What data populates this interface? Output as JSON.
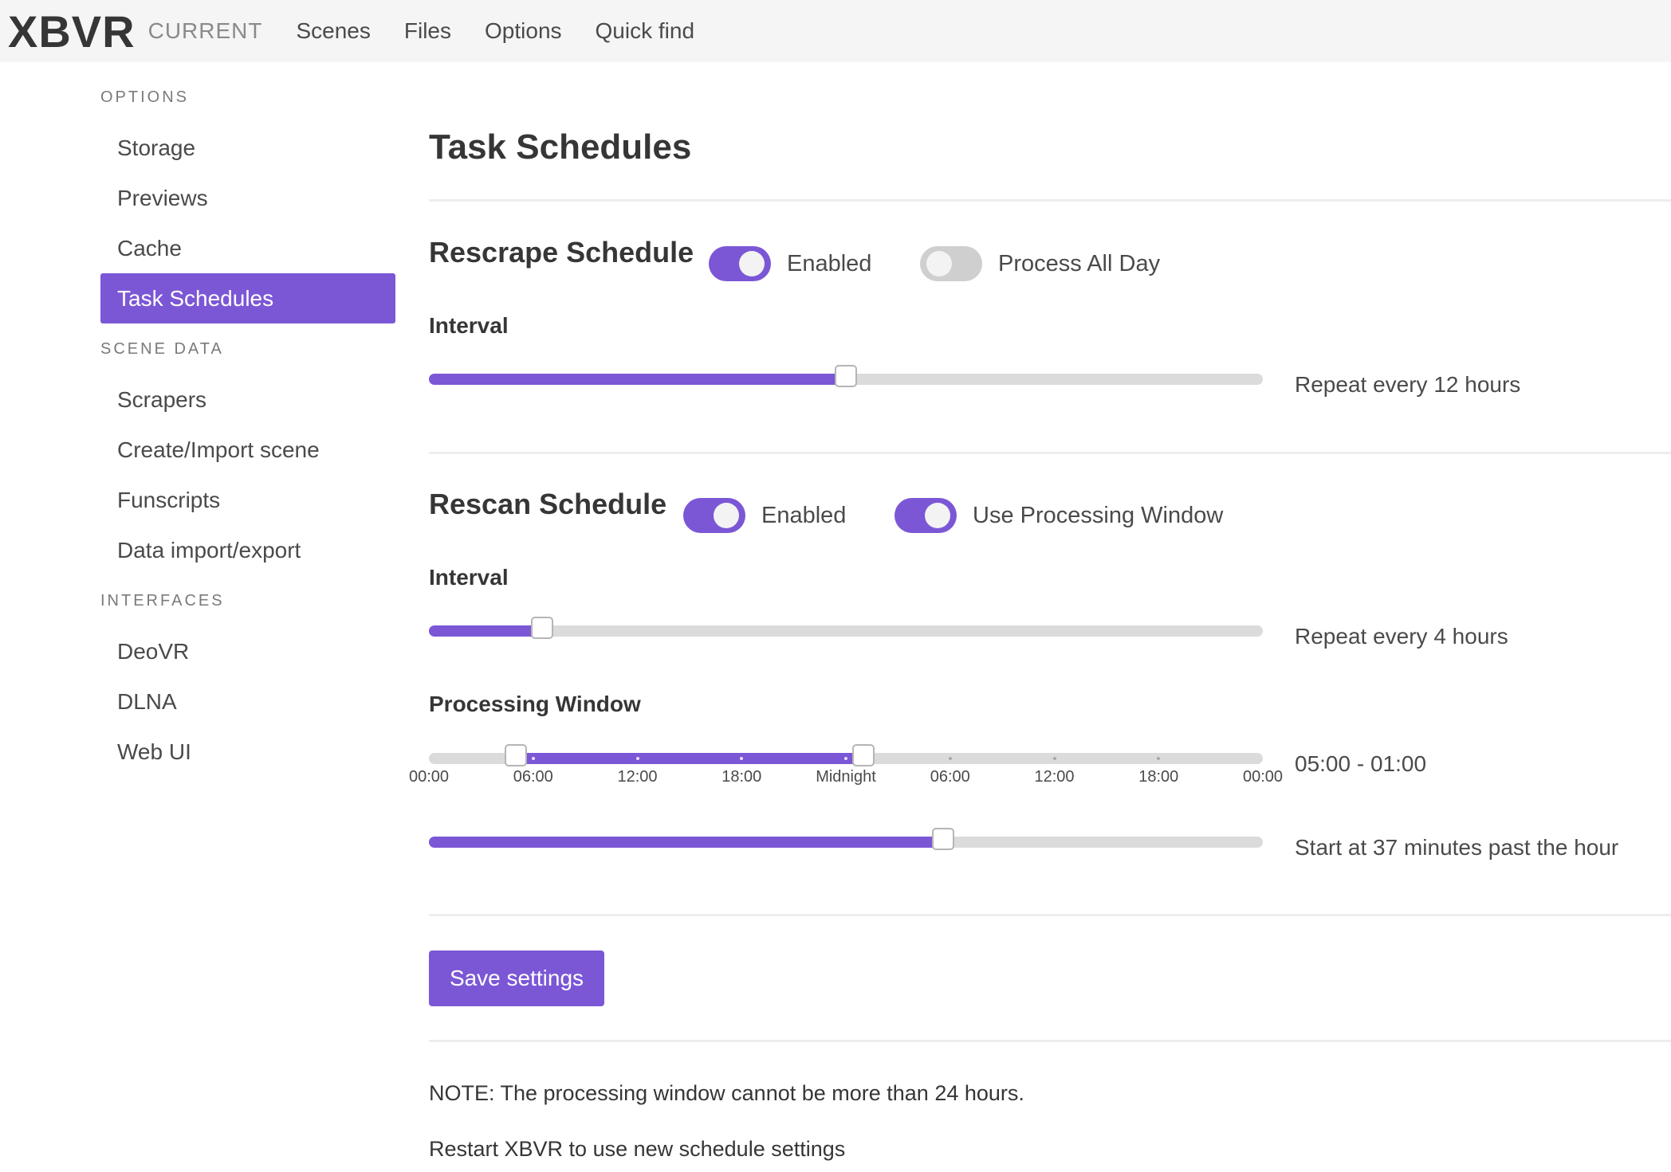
{
  "navbar": {
    "brand": "XBVR",
    "tag": "CURRENT",
    "items": [
      "Scenes",
      "Files",
      "Options",
      "Quick find"
    ]
  },
  "sidebar": {
    "groups": [
      {
        "label": "OPTIONS",
        "items": [
          "Storage",
          "Previews",
          "Cache",
          "Task Schedules"
        ]
      },
      {
        "label": "SCENE DATA",
        "items": [
          "Scrapers",
          "Create/Import scene",
          "Funscripts",
          "Data import/export"
        ]
      },
      {
        "label": "INTERFACES",
        "items": [
          "DeoVR",
          "DLNA",
          "Web UI"
        ]
      }
    ],
    "active_item": "Task Schedules"
  },
  "page": {
    "title": "Task Schedules"
  },
  "rescrape": {
    "title": "Rescrape Schedule",
    "enabled_label": "Enabled",
    "enabled": true,
    "all_day_label": "Process All Day",
    "all_day": false,
    "interval_label": "Interval",
    "interval_fraction": 0.5,
    "interval_text": "Repeat every 12 hours"
  },
  "rescan": {
    "title": "Rescan Schedule",
    "enabled_label": "Enabled",
    "enabled": true,
    "window_toggle_label": "Use Processing Window",
    "window_toggle": true,
    "interval_label": "Interval",
    "interval_fraction": 0.136,
    "interval_text": "Repeat every 4 hours",
    "window_label": "Processing Window",
    "window_start_hours": 5,
    "window_end_hours": 25,
    "window_range_hours": 48,
    "window_ticks": [
      "00:00",
      "06:00",
      "12:00",
      "18:00",
      "Midnight",
      "06:00",
      "12:00",
      "18:00",
      "00:00"
    ],
    "window_text": "05:00 - 01:00",
    "start_minute": 37,
    "start_minute_max": 60,
    "start_text": "Start at 37 minutes past the hour"
  },
  "actions": {
    "save_label": "Save settings"
  },
  "notes": {
    "window_note": "NOTE: The processing window cannot be more than 24 hours.",
    "restart_note": "Restart XBVR to use new schedule settings"
  },
  "colors": {
    "accent": "#7b57d6",
    "rail": "#dbdbdb",
    "navbar_bg": "#f5f5f5"
  }
}
